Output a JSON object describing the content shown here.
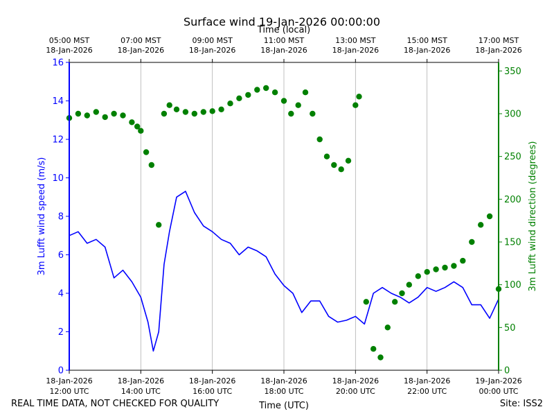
{
  "chart_data": {
    "type": "line+scatter",
    "title": "Surface wind 19-Jan-2026 00:00:00",
    "top_axis_label": "Time (local)",
    "top_ticks": [
      {
        "hours": 12,
        "l1": "05:00 MST",
        "l2": "18-Jan-2026"
      },
      {
        "hours": 14,
        "l1": "07:00 MST",
        "l2": "18-Jan-2026"
      },
      {
        "hours": 16,
        "l1": "09:00 MST",
        "l2": "18-Jan-2026"
      },
      {
        "hours": 18,
        "l1": "11:00 MST",
        "l2": "18-Jan-2026"
      },
      {
        "hours": 20,
        "l1": "13:00 MST",
        "l2": "18-Jan-2026"
      },
      {
        "hours": 22,
        "l1": "15:00 MST",
        "l2": "18-Jan-2026"
      },
      {
        "hours": 24,
        "l1": "17:00 MST",
        "l2": "18-Jan-2026"
      }
    ],
    "bottom_ticks": [
      {
        "hours": 12,
        "l1": "18-Jan-2026",
        "l2": "12:00 UTC"
      },
      {
        "hours": 14,
        "l1": "18-Jan-2026",
        "l2": "14:00 UTC"
      },
      {
        "hours": 16,
        "l1": "18-Jan-2026",
        "l2": "16:00 UTC"
      },
      {
        "hours": 18,
        "l1": "18-Jan-2026",
        "l2": "18:00 UTC"
      },
      {
        "hours": 20,
        "l1": "18-Jan-2026",
        "l2": "20:00 UTC"
      },
      {
        "hours": 22,
        "l1": "18-Jan-2026",
        "l2": "22:00 UTC"
      },
      {
        "hours": 24,
        "l1": "19-Jan-2026",
        "l2": "00:00 UTC"
      }
    ],
    "xlabel": "Time (UTC)",
    "xlim_hours": [
      12,
      24
    ],
    "y_left": {
      "label": "3m Lufft wind speed (m/s)",
      "lim": [
        0,
        16
      ],
      "ticks": [
        0,
        2,
        4,
        6,
        8,
        10,
        12,
        14,
        16
      ],
      "color": "#0000ff"
    },
    "y_right": {
      "label": "3m Lufft wind direction (degrees)",
      "lim": [
        0,
        360
      ],
      "ticks": [
        0,
        50,
        100,
        150,
        200,
        250,
        300,
        350
      ],
      "color": "#008000"
    },
    "grid": "vertical",
    "series": [
      {
        "color": "#0000ff",
        "kind": "line",
        "x_hours": [
          12.0,
          12.25,
          12.5,
          12.75,
          13.0,
          13.25,
          13.5,
          13.75,
          14.0,
          14.2,
          14.35,
          14.5,
          14.65,
          14.8,
          15.0,
          15.25,
          15.5,
          15.75,
          16.0,
          16.25,
          16.5,
          16.75,
          17.0,
          17.25,
          17.5,
          17.75,
          18.0,
          18.25,
          18.5,
          18.75,
          19.0,
          19.25,
          19.5,
          19.75,
          20.0,
          20.25,
          20.5,
          20.75,
          21.0,
          21.25,
          21.5,
          21.75,
          22.0,
          22.25,
          22.5,
          22.75,
          23.0,
          23.25,
          23.5,
          23.75,
          24.0
        ],
        "values": [
          7.0,
          7.2,
          6.6,
          6.8,
          6.4,
          4.8,
          5.2,
          4.6,
          3.8,
          2.5,
          1.0,
          2.0,
          5.5,
          7.2,
          9.0,
          9.3,
          8.2,
          7.5,
          7.2,
          6.8,
          6.6,
          6.0,
          6.4,
          6.2,
          5.9,
          5.0,
          4.4,
          4.0,
          3.0,
          3.6,
          3.6,
          2.8,
          2.5,
          2.6,
          2.8,
          2.4,
          4.0,
          4.3,
          4.0,
          3.8,
          3.5,
          3.8,
          4.3,
          4.1,
          4.3,
          4.6,
          4.3,
          3.4,
          3.4,
          2.7,
          3.7
        ]
      },
      {
        "color": "#008000",
        "kind": "scatter",
        "x_hours": [
          12.0,
          12.25,
          12.5,
          12.75,
          13.0,
          13.25,
          13.5,
          13.75,
          13.9,
          14.0,
          14.15,
          14.3,
          14.5,
          14.65,
          14.8,
          15.0,
          15.25,
          15.5,
          15.75,
          16.0,
          16.25,
          16.5,
          16.75,
          17.0,
          17.25,
          17.5,
          17.75,
          18.0,
          18.2,
          18.4,
          18.6,
          18.8,
          19.0,
          19.2,
          19.4,
          19.6,
          19.8,
          20.0,
          20.1,
          20.3,
          20.5,
          20.7,
          20.9,
          21.1,
          21.3,
          21.5,
          21.75,
          22.0,
          22.25,
          22.5,
          22.75,
          23.0,
          23.25,
          23.5,
          23.75,
          24.0
        ],
        "values": [
          295,
          300,
          298,
          302,
          296,
          300,
          298,
          290,
          285,
          280,
          255,
          240,
          170,
          300,
          310,
          305,
          302,
          300,
          302,
          303,
          305,
          312,
          318,
          322,
          328,
          330,
          325,
          315,
          300,
          310,
          325,
          300,
          270,
          250,
          240,
          235,
          245,
          310,
          320,
          80,
          25,
          15,
          50,
          80,
          90,
          100,
          110,
          115,
          118,
          120,
          122,
          128,
          150,
          170,
          180,
          95
        ]
      }
    ],
    "footer_left": "REAL TIME DATA, NOT CHECKED FOR QUALITY",
    "footer_right": "Site: ISS2"
  }
}
